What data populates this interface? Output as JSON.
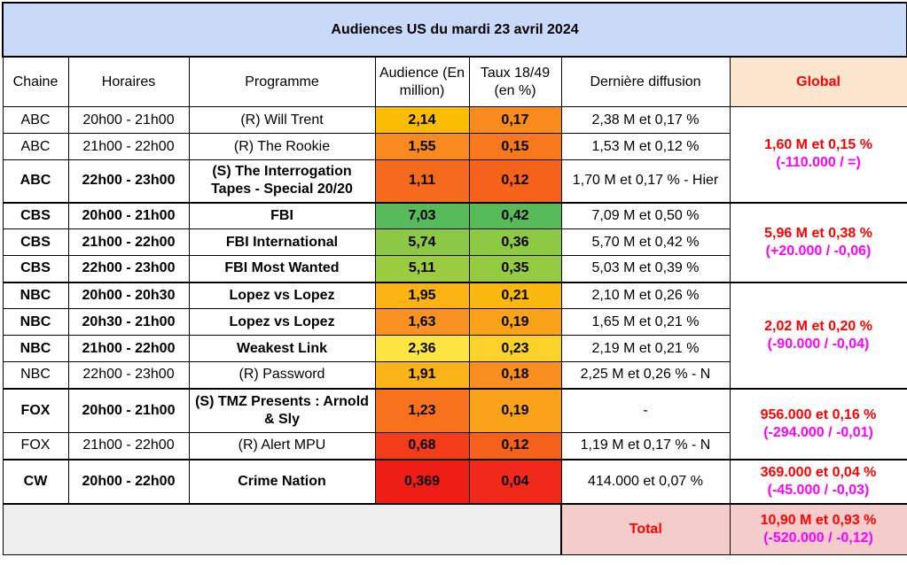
{
  "title": "Audiences US du mardi 23 avril 2024",
  "headers": {
    "chaine": "Chaine",
    "horaires": "Horaires",
    "programme": "Programme",
    "audience": "Audience (En million)",
    "taux": "Taux 18/49 (en %)",
    "derniere": "Dernière diffusion",
    "global": "Global"
  },
  "rows": [
    {
      "chaine": "ABC",
      "horaires": "20h00 - 21h00",
      "programme": "(R) Will Trent",
      "audience": "2,14",
      "taux": "0,17",
      "derniere": "2,38 M et 0,17 %",
      "bold": false,
      "aud_color": "#fbbc04",
      "taux_color": "#fa8c1e"
    },
    {
      "chaine": "ABC",
      "horaires": "21h00 - 22h00",
      "programme": "(R) The Rookie",
      "audience": "1,55",
      "taux": "0,15",
      "derniere": "1,53 M et 0,12 %",
      "bold": false,
      "aud_color": "#f98a1f",
      "taux_color": "#f8781d"
    },
    {
      "chaine": "ABC",
      "horaires": "22h00 - 23h00",
      "programme": "(S) The Interrogation Tapes - Special 20/20",
      "audience": "1,11",
      "taux": "0,12",
      "derniere": "1,70 M et 0,17 % - Hier",
      "bold": true,
      "aud_color": "#f66a1d",
      "taux_color": "#f6611b"
    },
    {
      "chaine": "CBS",
      "horaires": "20h00 - 21h00",
      "programme": "FBI",
      "audience": "7,03",
      "taux": "0,42",
      "derniere": "7,09 M et 0,50 %",
      "bold": true,
      "aud_color": "#57bb5a",
      "taux_color": "#57bb5a"
    },
    {
      "chaine": "CBS",
      "horaires": "21h00 - 22h00",
      "programme": "FBI International",
      "audience": "5,74",
      "taux": "0,36",
      "derniere": "5,70 M et 0,42 %",
      "bold": true,
      "aud_color": "#8cc845",
      "taux_color": "#8ec944"
    },
    {
      "chaine": "CBS",
      "horaires": "22h00 - 23h00",
      "programme": "FBI Most Wanted",
      "audience": "5,11",
      "taux": "0,35",
      "derniere": "5,03 M et 0,39 %",
      "bold": true,
      "aud_color": "#9ccd40",
      "taux_color": "#95cb42"
    },
    {
      "chaine": "NBC",
      "horaires": "20h00 - 20h30",
      "programme": "Lopez vs Lopez",
      "audience": "1,95",
      "taux": "0,21",
      "derniere": "2,10 M et 0,26 %",
      "bold": true,
      "aud_color": "#fbb414",
      "taux_color": "#fbb80f"
    },
    {
      "chaine": "NBC",
      "horaires": "20h30 - 21h00",
      "programme": "Lopez vs Lopez",
      "audience": "1,63",
      "taux": "0,19",
      "derniere": "1,65 M et 0,21 %",
      "bold": true,
      "aud_color": "#f99222",
      "taux_color": "#f9a21a"
    },
    {
      "chaine": "NBC",
      "horaires": "21h00 - 22h00",
      "programme": "Weakest Link",
      "audience": "2,36",
      "taux": "0,23",
      "derniere": "2,19 M et 0,21 %",
      "bold": true,
      "aud_color": "#fde544",
      "taux_color": "#fbd12b"
    },
    {
      "chaine": "NBC",
      "horaires": "22h00 - 23h00",
      "programme": "(R) Password",
      "audience": "1,91",
      "taux": "0,18",
      "derniere": "2,25 M et 0,26 % - N",
      "bold": false,
      "aud_color": "#fbb31a",
      "taux_color": "#f98f20"
    },
    {
      "chaine": "FOX",
      "horaires": "20h00 - 21h00",
      "programme": "(S) TMZ Presents : Arnold & Sly",
      "audience": "1,23",
      "taux": "0,19",
      "derniere": "-",
      "bold": true,
      "aud_color": "#f8721d",
      "taux_color": "#f9a21a"
    },
    {
      "chaine": "FOX",
      "horaires": "21h00 - 22h00",
      "programme": "(R) Alert MPU",
      "audience": "0,68",
      "taux": "0,12",
      "derniere": "1,19 M et 0,17 % - N",
      "bold": false,
      "aud_color": "#f33c1a",
      "taux_color": "#f6611b"
    },
    {
      "chaine": "CW",
      "horaires": "20h00 - 22h00",
      "programme": "Crime Nation",
      "audience": "0,369",
      "taux": "0,04",
      "derniere": "414.000 et 0,07 %",
      "bold": true,
      "aud_color": "#ee1e17",
      "taux_color": "#f0291a"
    }
  ],
  "globals": [
    {
      "line1": "1,60 M et 0,15 %",
      "line2": "(-110.000 / =)"
    },
    {
      "line1": "5,96 M et 0,38 %",
      "line2": "(+20.000 / -0,06)"
    },
    {
      "line1": "2,02 M et 0,20 %",
      "line2": "(-90.000 / -0,04)"
    },
    {
      "line1": "956.000 et 0,16 %",
      "line2": "(-294.000 / -0,01)"
    },
    {
      "line1": "369.000 et 0,04 %",
      "line2": "(-45.000 / -0,03)"
    }
  ],
  "total": {
    "label": "Total",
    "line1": "10,90 M et 0,93 %",
    "line2": "(-520.000 / -0,12)"
  },
  "colors": {
    "title_bg": "#c9daf8",
    "global_header_bg": "#fce5cd",
    "global_red": "#ff0000",
    "global_magenta": "#ff00ff",
    "total_bg": "#f4cccc",
    "footer_grey": "#efefef"
  }
}
